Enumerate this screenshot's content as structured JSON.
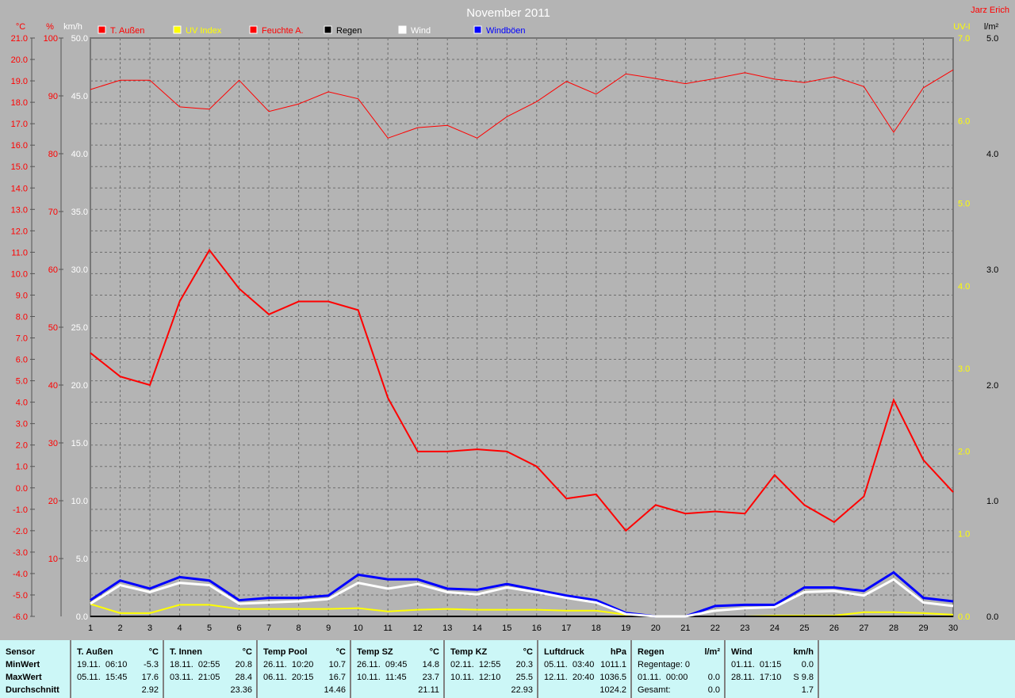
{
  "header": {
    "title": "November 2011",
    "author": "Jarz Erich"
  },
  "colors": {
    "temp": "#ff0000",
    "uv": "#ffff00",
    "humidity": "#ff0000",
    "rain": "#000000",
    "wind": "#ffffff",
    "gusts": "#0000ff",
    "background": "#b4b4b4",
    "table": "#ccf7f7"
  },
  "chart_data": {
    "type": "line",
    "title": "November 2011",
    "x": [
      1,
      2,
      3,
      4,
      5,
      6,
      7,
      8,
      9,
      10,
      11,
      12,
      13,
      14,
      15,
      16,
      17,
      18,
      19,
      20,
      21,
      22,
      23,
      24,
      25,
      26,
      27,
      28,
      29,
      30
    ],
    "grid": true,
    "legend_position": "top",
    "axes": {
      "celsius": {
        "unit": "°C",
        "range": [
          -6,
          21
        ],
        "ticks": [
          "-6.0",
          "-5.0",
          "-4.0",
          "-3.0",
          "-2.0",
          "-1.0",
          "0.0",
          "1.0",
          "2.0",
          "3.0",
          "4.0",
          "5.0",
          "6.0",
          "7.0",
          "8.0",
          "9.0",
          "10.0",
          "11.0",
          "12.0",
          "13.0",
          "14.0",
          "15.0",
          "16.0",
          "17.0",
          "18.0",
          "19.0",
          "20.0",
          "21.0"
        ]
      },
      "percent": {
        "unit": "%",
        "range": [
          0,
          100
        ],
        "ticks": [
          "0",
          "10",
          "20",
          "30",
          "40",
          "50",
          "60",
          "70",
          "80",
          "90",
          "100"
        ]
      },
      "kmh": {
        "unit": "km/h",
        "range": [
          0,
          50
        ],
        "ticks": [
          "0.0",
          "5.0",
          "10.0",
          "15.0",
          "20.0",
          "25.0",
          "30.0",
          "35.0",
          "40.0",
          "45.0",
          "50.0"
        ]
      },
      "uv": {
        "unit": "UV-I",
        "range": [
          0,
          7
        ],
        "ticks": [
          "0.0",
          "1.0",
          "2.0",
          "3.0",
          "4.0",
          "5.0",
          "6.0",
          "7.0"
        ]
      },
      "rain": {
        "unit": "l/m²",
        "range": [
          0,
          5
        ],
        "ticks": [
          "0.0",
          "1.0",
          "2.0",
          "3.0",
          "4.0",
          "5.0"
        ]
      }
    },
    "series": [
      {
        "name": "T. Außen",
        "axis": "celsius",
        "color": "#ff0000",
        "width": 2,
        "values": [
          6.3,
          5.2,
          4.8,
          8.7,
          11.1,
          9.3,
          8.1,
          8.7,
          8.7,
          8.3,
          4.2,
          1.7,
          1.7,
          1.8,
          1.7,
          1.0,
          -0.5,
          -0.3,
          -2.0,
          -0.8,
          -1.2,
          -1.1,
          -1.2,
          0.6,
          -0.8,
          -1.6,
          -0.4,
          4.1,
          1.3,
          -0.2
        ]
      },
      {
        "name": "UV Index",
        "axis": "uv",
        "color": "#ffff00",
        "width": 2,
        "values": [
          0.15,
          0.04,
          0.04,
          0.14,
          0.14,
          0.09,
          0.09,
          0.09,
          0.09,
          0.1,
          0.06,
          0.08,
          0.09,
          0.08,
          0.08,
          0.08,
          0.07,
          0.07,
          0.02,
          0,
          0,
          0,
          0,
          0.01,
          0.01,
          0.01,
          0.05,
          0.05,
          0.04,
          0.02
        ]
      },
      {
        "name": "Feuchte A.",
        "axis": "percent",
        "color": "#ff0000",
        "width": 1,
        "values": [
          91.1,
          92.7,
          92.7,
          88.1,
          87.7,
          92.7,
          87.3,
          88.6,
          90.7,
          89.5,
          82.7,
          84.5,
          84.9,
          82.7,
          86.4,
          89.0,
          92.5,
          90.3,
          93.8,
          93.0,
          92.1,
          93.0,
          94.0,
          92.9,
          92.3,
          93.3,
          91.6,
          83.7,
          91.4,
          94.5
        ]
      },
      {
        "name": "Regen",
        "axis": "rain",
        "color": "#000000",
        "width": 2,
        "values": [
          0,
          0,
          0,
          0,
          0,
          0,
          0,
          0,
          0,
          0,
          0,
          0,
          0,
          0,
          0,
          0,
          0,
          0,
          0,
          0,
          0,
          0,
          0,
          0,
          0,
          0,
          0,
          0,
          0,
          0
        ]
      },
      {
        "name": "Windböen",
        "axis": "kmh",
        "color": "#0000ff",
        "width": 3,
        "values": [
          1.4,
          3.1,
          2.4,
          3.4,
          3.1,
          1.4,
          1.6,
          1.6,
          1.8,
          3.6,
          3.2,
          3.2,
          2.4,
          2.3,
          2.8,
          2.3,
          1.8,
          1.4,
          0.3,
          0,
          0,
          0.9,
          1.0,
          1.0,
          2.5,
          2.5,
          2.2,
          3.8,
          1.6,
          1.3
        ]
      },
      {
        "name": "Wind",
        "axis": "kmh",
        "color": "#ffffff",
        "width": 3,
        "values": [
          1.1,
          2.7,
          2.1,
          2.9,
          2.7,
          1.1,
          1.2,
          1.3,
          1.5,
          2.9,
          2.4,
          2.8,
          2.1,
          1.9,
          2.5,
          2.1,
          1.6,
          1.2,
          0.2,
          0,
          0,
          0.5,
          0.7,
          0.8,
          2.1,
          2.2,
          1.8,
          3.2,
          1.2,
          0.9
        ]
      }
    ]
  },
  "table": {
    "sensor": {
      "header": "Sensor",
      "rows": [
        "MinWert",
        "MaxWert",
        "Durchschnitt"
      ]
    },
    "columns": [
      {
        "name": "T. Außen",
        "unit": "°C",
        "min_time": "19.11.  06:10",
        "min": "-5.3",
        "max_time": "05.11.  15:45",
        "max": "17.6",
        "avg": "2.92"
      },
      {
        "name": "T. Innen",
        "unit": "°C",
        "min_time": "18.11.  02:55",
        "min": "20.8",
        "max_time": "03.11.  21:05",
        "max": "28.4",
        "avg": "23.36"
      },
      {
        "name": "Temp Pool",
        "unit": "°C",
        "min_time": "26.11.  10:20",
        "min": "10.7",
        "max_time": "06.11.  20:15",
        "max": "16.7",
        "avg": "14.46"
      },
      {
        "name": "Temp SZ",
        "unit": "°C",
        "min_time": "26.11.  09:45",
        "min": "14.8",
        "max_time": "10.11.  11:45",
        "max": "23.7",
        "avg": "21.11"
      },
      {
        "name": "Temp KZ",
        "unit": "°C",
        "min_time": "02.11.  12:55",
        "min": "20.3",
        "max_time": "10.11.  12:10",
        "max": "25.5",
        "avg": "22.93"
      },
      {
        "name": "Luftdruck",
        "unit": "hPa",
        "min_time": "05.11.  03:40",
        "min": "1011.1",
        "max_time": "12.11.  20:40",
        "max": "1036.5",
        "avg": "1024.2"
      },
      {
        "name": "Regen",
        "unit": "l/m²",
        "min_time": "Regentage: 0",
        "min": "",
        "max_time": "01.11.  00:00",
        "max": "0.0",
        "avg_label": "Gesamt:",
        "avg": "0.0"
      },
      {
        "name": "Wind",
        "unit": "km/h",
        "min_time": "01.11.  01:15",
        "min": "0.0",
        "max_time": "28.11.  17:10",
        "max": "S 9.8",
        "avg": "1.7"
      }
    ]
  }
}
